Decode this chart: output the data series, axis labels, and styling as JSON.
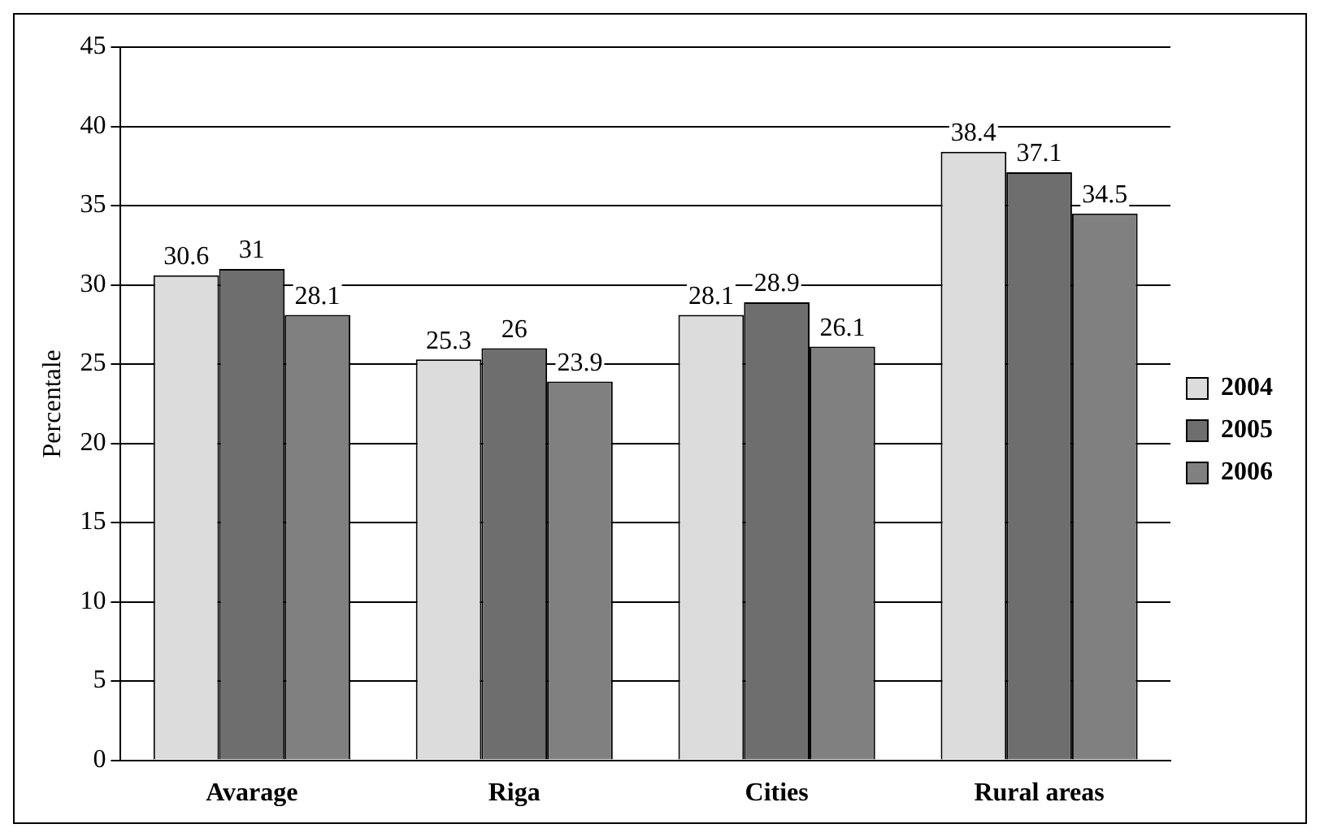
{
  "chart_data": {
    "type": "bar",
    "ylabel": "Percentale",
    "categories": [
      "Avarage",
      "Riga",
      "Cities",
      "Rural areas"
    ],
    "series": [
      {
        "name": "2004",
        "color": "#dcdcdc",
        "values": [
          30.6,
          25.3,
          28.1,
          38.4
        ]
      },
      {
        "name": "2005",
        "color": "#6e6e6e",
        "values": [
          31,
          26,
          28.9,
          37.1
        ]
      },
      {
        "name": "2006",
        "color": "#808080",
        "values": [
          28.1,
          23.9,
          26.1,
          34.5
        ]
      }
    ],
    "ylim": [
      0,
      45
    ],
    "yticks": [
      0,
      5,
      10,
      15,
      20,
      25,
      30,
      35,
      40,
      45
    ],
    "grid": "y",
    "legend": "right",
    "data_labels": true
  }
}
